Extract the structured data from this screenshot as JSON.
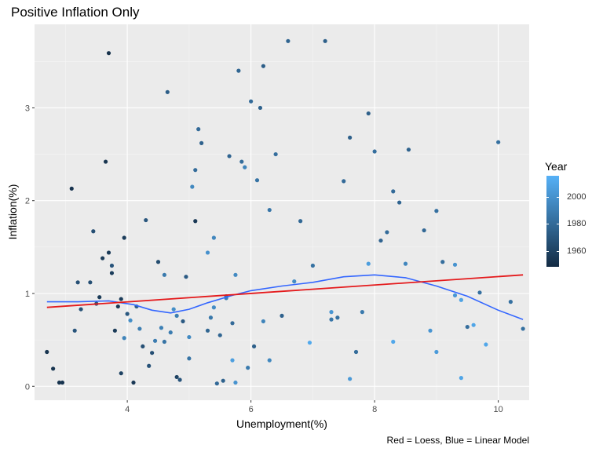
{
  "title": "Positive Inflation Only",
  "caption": "Red = Loess, Blue = Linear Model",
  "chart_data": {
    "type": "scatter",
    "title": "Positive Inflation Only",
    "xlabel": "Unemployment(%)",
    "ylabel": "Inflation(%)",
    "xlim": [
      2.5,
      10.5
    ],
    "ylim": [
      -0.15,
      3.9
    ],
    "x_ticks": [
      4,
      6,
      8,
      10
    ],
    "y_ticks": [
      0,
      1,
      2,
      3
    ],
    "grid": true,
    "legend": {
      "title": "Year",
      "position": "right",
      "color_range": [
        1948,
        2016
      ],
      "ticks": [
        1960,
        1980,
        2000
      ],
      "colors": {
        "low": "#132b43",
        "high": "#56b1f7"
      }
    },
    "points": [
      [
        2.7,
        0.37,
        1953
      ],
      [
        2.8,
        0.19,
        1953
      ],
      [
        2.9,
        0.04,
        1952
      ],
      [
        2.95,
        0.04,
        1953
      ],
      [
        3.1,
        2.13,
        1952
      ],
      [
        3.15,
        0.6,
        1969
      ],
      [
        3.2,
        1.12,
        1967
      ],
      [
        3.25,
        0.83,
        1968
      ],
      [
        3.4,
        1.12,
        1966
      ],
      [
        3.45,
        1.67,
        1966
      ],
      [
        3.5,
        0.89,
        1969
      ],
      [
        3.55,
        0.96,
        1956
      ],
      [
        3.6,
        1.38,
        1956
      ],
      [
        3.65,
        2.42,
        1953
      ],
      [
        3.7,
        1.44,
        1956
      ],
      [
        3.7,
        3.59,
        1951
      ],
      [
        3.75,
        1.22,
        1957
      ],
      [
        3.75,
        1.3,
        1969
      ],
      [
        3.8,
        0.6,
        1956
      ],
      [
        3.85,
        0.86,
        1955
      ],
      [
        3.9,
        0.94,
        1957
      ],
      [
        3.9,
        0.14,
        1960
      ],
      [
        3.95,
        1.6,
        1957
      ],
      [
        3.95,
        0.52,
        1993
      ],
      [
        4.0,
        0.78,
        1971
      ],
      [
        4.05,
        0.71,
        1998
      ],
      [
        4.1,
        0.04,
        1955
      ],
      [
        4.15,
        0.86,
        1974
      ],
      [
        4.2,
        0.62,
        1990
      ],
      [
        4.25,
        0.43,
        1967
      ],
      [
        4.3,
        1.79,
        1970
      ],
      [
        4.35,
        0.22,
        1968
      ],
      [
        4.4,
        0.36,
        1966
      ],
      [
        4.45,
        0.49,
        1989
      ],
      [
        4.5,
        1.34,
        1965
      ],
      [
        4.55,
        0.63,
        1991
      ],
      [
        4.6,
        1.2,
        1988
      ],
      [
        4.6,
        0.48,
        1985
      ],
      [
        4.65,
        3.17,
        1974
      ],
      [
        4.7,
        0.58,
        1989
      ],
      [
        4.75,
        0.83,
        1998
      ],
      [
        4.8,
        0.76,
        1990
      ],
      [
        4.8,
        0.1,
        1960
      ],
      [
        4.85,
        0.07,
        1969
      ],
      [
        4.9,
        0.7,
        1972
      ],
      [
        4.95,
        1.18,
        1972
      ],
      [
        5.0,
        0.3,
        1985
      ],
      [
        5.0,
        0.53,
        1996
      ],
      [
        5.05,
        2.15,
        1995
      ],
      [
        5.1,
        2.33,
        1981
      ],
      [
        5.1,
        1.78,
        1955
      ],
      [
        5.15,
        2.77,
        1980
      ],
      [
        5.2,
        2.62,
        1976
      ],
      [
        5.3,
        0.6,
        1978
      ],
      [
        5.35,
        0.74,
        1987
      ],
      [
        5.4,
        1.6,
        1994
      ],
      [
        5.45,
        0.03,
        1980
      ],
      [
        5.5,
        0.55,
        1978
      ],
      [
        5.55,
        0.06,
        1976
      ],
      [
        5.6,
        0.97,
        1980
      ],
      [
        5.65,
        2.48,
        1977
      ],
      [
        5.7,
        0.68,
        1980
      ],
      [
        5.75,
        1.2,
        1996
      ],
      [
        5.8,
        3.4,
        1978
      ],
      [
        5.85,
        2.42,
        1981
      ],
      [
        5.9,
        2.36,
        1993
      ],
      [
        5.95,
        0.2,
        1988
      ],
      [
        6.0,
        3.07,
        1980
      ],
      [
        6.05,
        0.43,
        1975
      ],
      [
        6.1,
        2.22,
        1985
      ],
      [
        6.15,
        3.0,
        1976
      ],
      [
        6.2,
        3.45,
        1974
      ],
      [
        6.2,
        0.7,
        1993
      ],
      [
        6.3,
        1.9,
        1986
      ],
      [
        6.4,
        2.5,
        1982
      ],
      [
        6.5,
        0.76,
        1976
      ],
      [
        6.6,
        3.72,
        1977
      ],
      [
        6.8,
        1.78,
        1979
      ],
      [
        7.0,
        1.3,
        1984
      ],
      [
        7.2,
        3.72,
        1975
      ],
      [
        7.3,
        0.72,
        1986
      ],
      [
        7.4,
        0.74,
        1983
      ],
      [
        7.5,
        2.21,
        1980
      ],
      [
        7.6,
        2.68,
        1975
      ],
      [
        7.7,
        0.37,
        1981
      ],
      [
        7.8,
        0.8,
        1988
      ],
      [
        7.9,
        2.94,
        1975
      ],
      [
        8.0,
        2.53,
        1982
      ],
      [
        8.1,
        1.57,
        1977
      ],
      [
        8.2,
        1.66,
        1981
      ],
      [
        8.3,
        2.1,
        1980
      ],
      [
        8.4,
        1.98,
        1977
      ],
      [
        8.5,
        1.32,
        1994
      ],
      [
        8.55,
        2.55,
        1976
      ],
      [
        8.8,
        1.68,
        1979
      ],
      [
        9.0,
        1.89,
        1983
      ],
      [
        9.1,
        1.34,
        1982
      ],
      [
        9.3,
        1.31,
        2001
      ],
      [
        9.5,
        0.64,
        1982
      ],
      [
        9.7,
        1.01,
        1983
      ],
      [
        10.0,
        2.63,
        1983
      ],
      [
        10.2,
        0.91,
        1983
      ],
      [
        10.4,
        0.62,
        1983
      ],
      [
        9.8,
        0.45,
        2011
      ],
      [
        9.4,
        0.09,
        2010
      ],
      [
        8.9,
        0.6,
        2002
      ],
      [
        7.6,
        0.08,
        2004
      ],
      [
        9.0,
        0.37,
        2005
      ],
      [
        9.4,
        0.93,
        2009
      ],
      [
        9.6,
        0.66,
        2010
      ],
      [
        8.3,
        0.48,
        2011
      ],
      [
        6.95,
        0.47,
        2012
      ],
      [
        7.9,
        1.32,
        2006
      ],
      [
        9.3,
        0.98,
        2003
      ],
      [
        7.3,
        0.8,
        2002
      ],
      [
        6.7,
        1.13,
        1997
      ],
      [
        5.3,
        1.44,
        2000
      ],
      [
        5.7,
        0.28,
        2007
      ],
      [
        5.75,
        0.04,
        2001
      ],
      [
        6.3,
        0.28,
        1995
      ],
      [
        5.4,
        0.85,
        1997
      ],
      [
        5.6,
        0.95,
        1990
      ]
    ],
    "loess": [
      [
        2.7,
        0.91
      ],
      [
        3.2,
        0.91
      ],
      [
        3.7,
        0.92
      ],
      [
        4.1,
        0.88
      ],
      [
        4.4,
        0.82
      ],
      [
        4.7,
        0.79
      ],
      [
        5.0,
        0.83
      ],
      [
        5.3,
        0.9
      ],
      [
        5.7,
        0.98
      ],
      [
        6.0,
        1.03
      ],
      [
        6.5,
        1.08
      ],
      [
        7.0,
        1.12
      ],
      [
        7.5,
        1.18
      ],
      [
        8.0,
        1.2
      ],
      [
        8.5,
        1.17
      ],
      [
        9.0,
        1.08
      ],
      [
        9.5,
        0.97
      ],
      [
        10.0,
        0.82
      ],
      [
        10.4,
        0.72
      ]
    ],
    "linear_model": [
      [
        2.7,
        0.85
      ],
      [
        10.4,
        1.2
      ]
    ]
  }
}
